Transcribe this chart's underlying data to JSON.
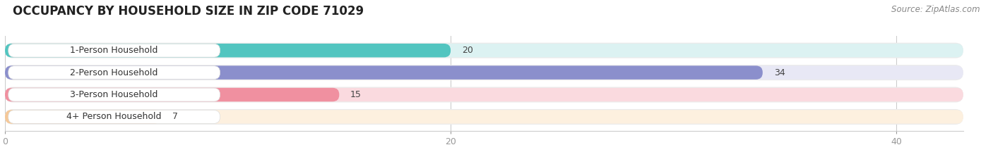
{
  "title": "OCCUPANCY BY HOUSEHOLD SIZE IN ZIP CODE 71029",
  "source": "Source: ZipAtlas.com",
  "categories": [
    "1-Person Household",
    "2-Person Household",
    "3-Person Household",
    "4+ Person Household"
  ],
  "values": [
    20,
    34,
    15,
    7
  ],
  "bar_colors": [
    "#52C5C0",
    "#8B8FCC",
    "#F090A0",
    "#F5C898"
  ],
  "bg_colors": [
    "#DCF2F2",
    "#E8E8F5",
    "#FADADF",
    "#FDF0DF"
  ],
  "track_color": "#EBEBEB",
  "xlim": [
    0,
    43
  ],
  "xticks": [
    0,
    20,
    40
  ],
  "title_fontsize": 12,
  "label_fontsize": 9,
  "value_fontsize": 9,
  "source_fontsize": 8.5
}
